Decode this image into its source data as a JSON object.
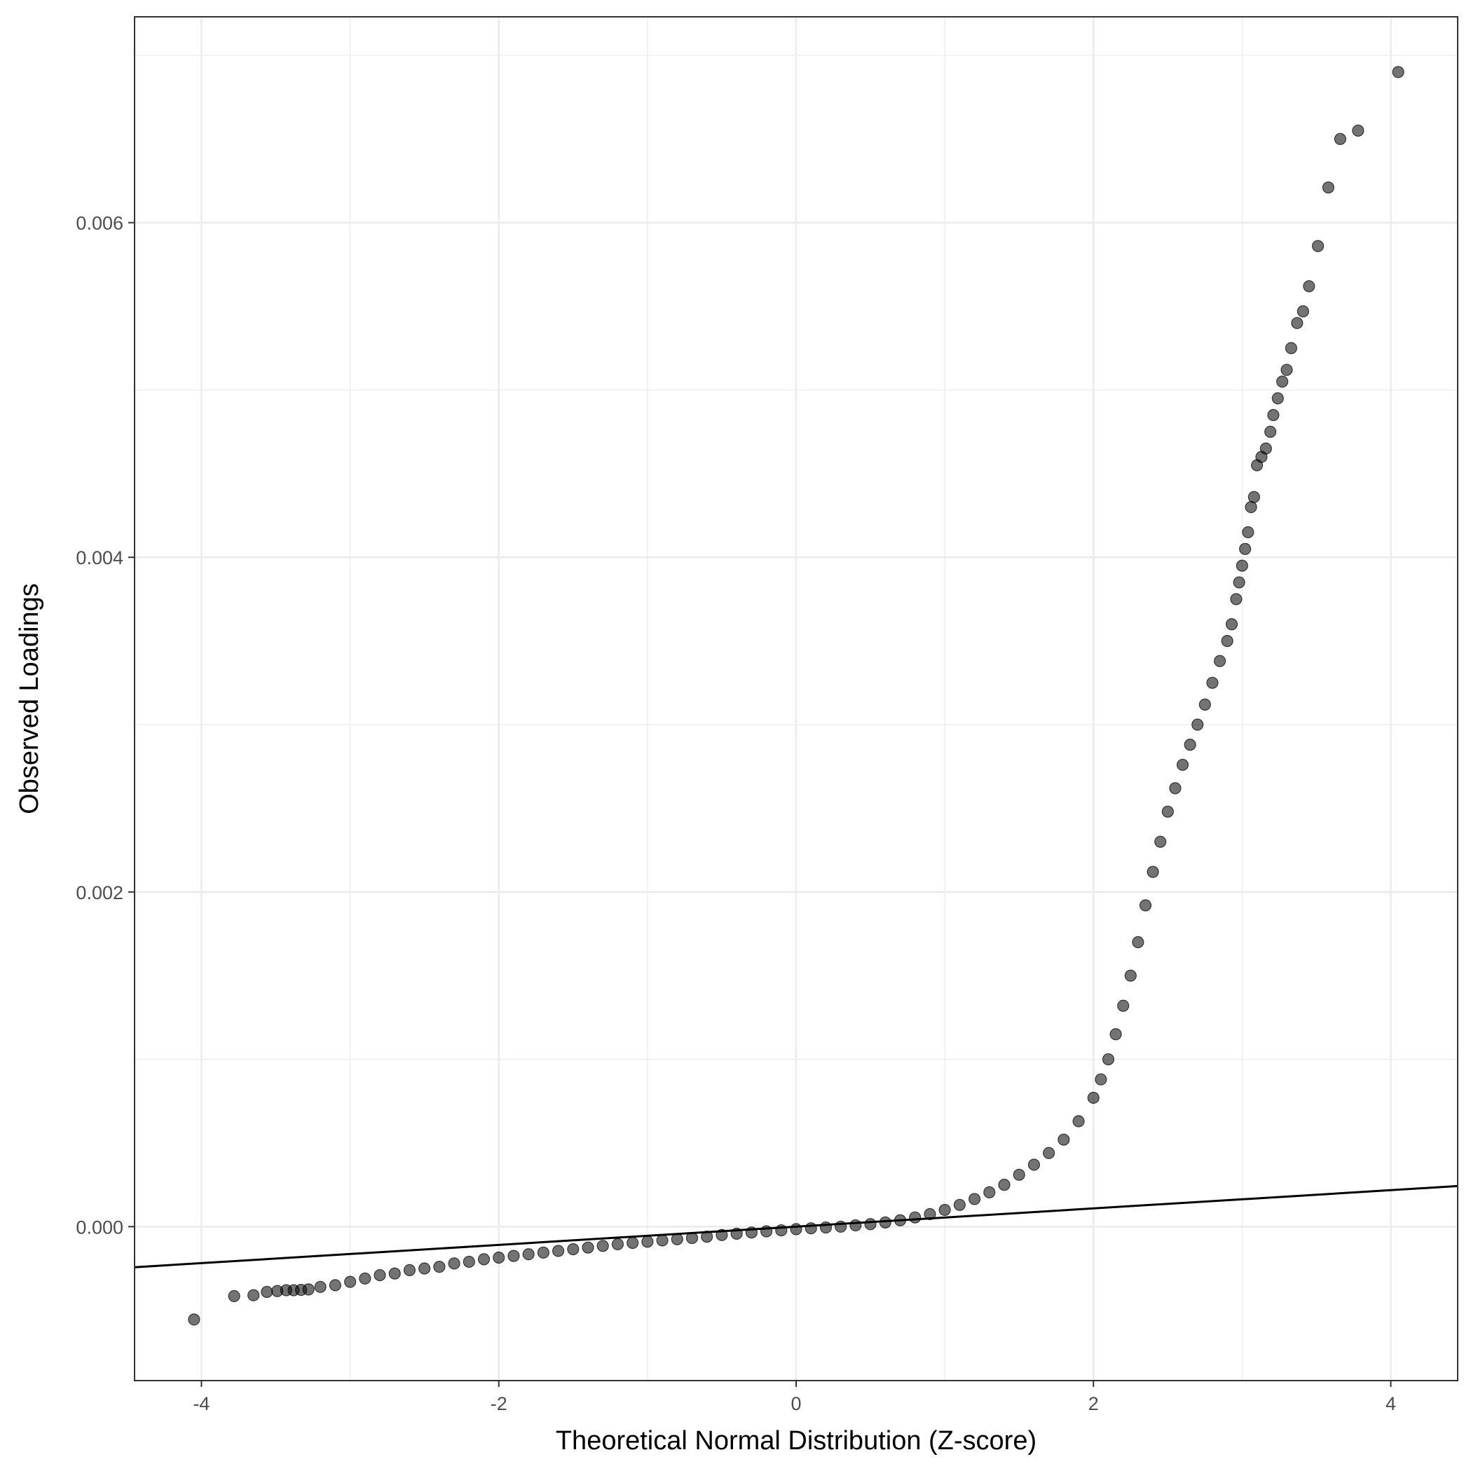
{
  "chart_data": {
    "type": "scatter",
    "title": "",
    "xlabel": "Theoretical Normal Distribution (Z-score)",
    "ylabel": "Observed Loadings",
    "xlim": [
      -4.45,
      4.45
    ],
    "ylim": [
      -0.00092,
      0.00723
    ],
    "x_ticks": [
      -4,
      -2,
      0,
      2,
      4
    ],
    "x_tick_labels": [
      "-4",
      "-2",
      "0",
      "2",
      "4"
    ],
    "y_ticks": [
      0.0,
      0.002,
      0.004,
      0.006
    ],
    "y_tick_labels": [
      "0.000",
      "0.002",
      "0.004",
      "0.006"
    ],
    "grid": true,
    "legend": "none",
    "colors": {
      "point": "#000000",
      "line": "#000000",
      "grid": "#ebebeb",
      "panel_border": "#333333"
    },
    "reference_line": {
      "intercept": 0.0,
      "slope": 5.45e-05
    },
    "series": [
      {
        "points": [
          [
            -4.05,
            -0.000555
          ],
          [
            -3.78,
            -0.000415
          ],
          [
            -3.65,
            -0.00041
          ],
          [
            -3.56,
            -0.00039
          ],
          [
            -3.49,
            -0.000385
          ],
          [
            -3.43,
            -0.00038
          ],
          [
            -3.38,
            -0.00038
          ],
          [
            -3.33,
            -0.000378
          ],
          [
            -3.28,
            -0.000375
          ],
          [
            -3.2,
            -0.00036
          ],
          [
            -3.1,
            -0.00035
          ],
          [
            -3.0,
            -0.00033
          ],
          [
            -2.9,
            -0.00031
          ],
          [
            -2.8,
            -0.00029
          ],
          [
            -2.7,
            -0.00028
          ],
          [
            -2.6,
            -0.00026
          ],
          [
            -2.5,
            -0.00025
          ],
          [
            -2.4,
            -0.00024
          ],
          [
            -2.3,
            -0.00022
          ],
          [
            -2.2,
            -0.00021
          ],
          [
            -2.1,
            -0.000195
          ],
          [
            -2.0,
            -0.000185
          ],
          [
            -1.9,
            -0.000175
          ],
          [
            -1.8,
            -0.000165
          ],
          [
            -1.7,
            -0.000155
          ],
          [
            -1.6,
            -0.000145
          ],
          [
            -1.5,
            -0.000135
          ],
          [
            -1.4,
            -0.000125
          ],
          [
            -1.3,
            -0.000115
          ],
          [
            -1.2,
            -0.000105
          ],
          [
            -1.1,
            -9.7e-05
          ],
          [
            -1.0,
            -9e-05
          ],
          [
            -0.9,
            -8.2e-05
          ],
          [
            -0.8,
            -7.5e-05
          ],
          [
            -0.7,
            -6.8e-05
          ],
          [
            -0.6,
            -6e-05
          ],
          [
            -0.5,
            -5e-05
          ],
          [
            -0.4,
            -4.2e-05
          ],
          [
            -0.3,
            -3.5e-05
          ],
          [
            -0.2,
            -2.8e-05
          ],
          [
            -0.1,
            -2.2e-05
          ],
          [
            0.0,
            -1.5e-05
          ],
          [
            0.1,
            -1e-05
          ],
          [
            0.2,
            -5e-06
          ],
          [
            0.3,
            0.0
          ],
          [
            0.4,
            8e-06
          ],
          [
            0.5,
            1.5e-05
          ],
          [
            0.6,
            2.5e-05
          ],
          [
            0.7,
            3.8e-05
          ],
          [
            0.8,
            5.5e-05
          ],
          [
            0.9,
            7.5e-05
          ],
          [
            1.0,
            0.0001
          ],
          [
            1.1,
            0.00013
          ],
          [
            1.2,
            0.000165
          ],
          [
            1.3,
            0.000205
          ],
          [
            1.4,
            0.00025
          ],
          [
            1.5,
            0.00031
          ],
          [
            1.6,
            0.00037
          ],
          [
            1.7,
            0.00044
          ],
          [
            1.8,
            0.00052
          ],
          [
            1.9,
            0.00063
          ],
          [
            2.0,
            0.00077
          ],
          [
            2.05,
            0.00088
          ],
          [
            2.1,
            0.001
          ],
          [
            2.15,
            0.00115
          ],
          [
            2.2,
            0.00132
          ],
          [
            2.25,
            0.0015
          ],
          [
            2.3,
            0.0017
          ],
          [
            2.35,
            0.00192
          ],
          [
            2.4,
            0.00212
          ],
          [
            2.45,
            0.0023
          ],
          [
            2.5,
            0.00248
          ],
          [
            2.55,
            0.00262
          ],
          [
            2.6,
            0.00276
          ],
          [
            2.65,
            0.00288
          ],
          [
            2.7,
            0.003
          ],
          [
            2.75,
            0.00312
          ],
          [
            2.8,
            0.00325
          ],
          [
            2.85,
            0.00338
          ],
          [
            2.9,
            0.0035
          ],
          [
            2.93,
            0.0036
          ],
          [
            2.96,
            0.00375
          ],
          [
            2.98,
            0.00385
          ],
          [
            3.0,
            0.00395
          ],
          [
            3.02,
            0.00405
          ],
          [
            3.04,
            0.00415
          ],
          [
            3.06,
            0.0043
          ],
          [
            3.08,
            0.00436
          ],
          [
            3.1,
            0.00455
          ],
          [
            3.13,
            0.0046
          ],
          [
            3.16,
            0.00465
          ],
          [
            3.19,
            0.00475
          ],
          [
            3.21,
            0.00485
          ],
          [
            3.24,
            0.00495
          ],
          [
            3.27,
            0.00505
          ],
          [
            3.3,
            0.00512
          ],
          [
            3.33,
            0.00525
          ],
          [
            3.37,
            0.0054
          ],
          [
            3.41,
            0.00547
          ],
          [
            3.45,
            0.00562
          ],
          [
            3.51,
            0.00586
          ],
          [
            3.58,
            0.00621
          ],
          [
            3.66,
            0.0065
          ],
          [
            3.78,
            0.00655
          ],
          [
            4.05,
            0.0069
          ]
        ]
      }
    ]
  }
}
